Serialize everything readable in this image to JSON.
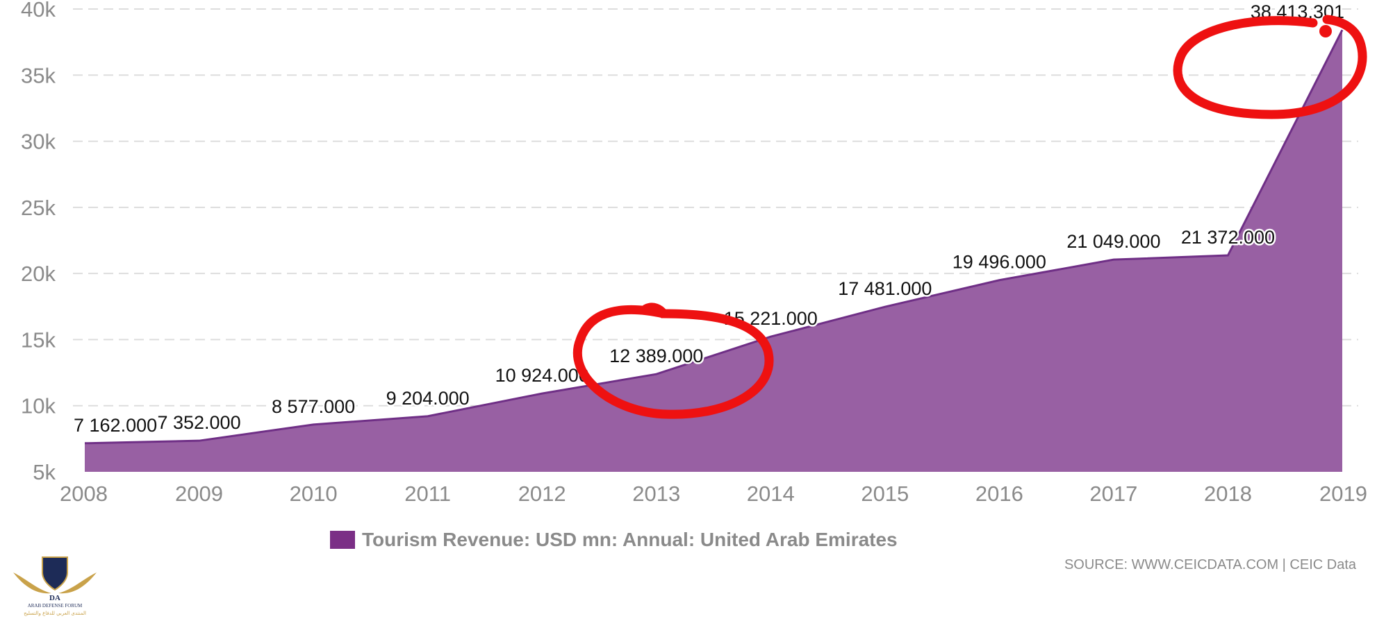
{
  "chart_data": {
    "type": "area",
    "x": [
      "2008",
      "2009",
      "2010",
      "2011",
      "2012",
      "2013",
      "2014",
      "2015",
      "2016",
      "2017",
      "2018",
      "2019"
    ],
    "series": [
      {
        "name": "Tourism Revenue: USD mn: Annual: United Arab Emirates",
        "values": [
          7162.0,
          7352.0,
          8577.0,
          9204.0,
          10924.0,
          12389.0,
          15221.0,
          17481.0,
          19496.0,
          21049.0,
          21372.0,
          38413.301
        ]
      }
    ],
    "data_labels": [
      "7 162.000",
      "7 352.000",
      "8 577.000",
      "9 204.000",
      "10 924.000",
      "12 389.000",
      "15 221.000",
      "17 481.000",
      "19 496.000",
      "21 049.000",
      "21 372.000",
      "38 413.301"
    ],
    "ylim": [
      5000,
      40000
    ],
    "y_ticks": [
      5000,
      10000,
      15000,
      20000,
      25000,
      30000,
      35000,
      40000
    ],
    "y_tick_labels": [
      "5k",
      "10k",
      "15k",
      "20k",
      "25k",
      "30k",
      "35k",
      "40k"
    ],
    "grid": true,
    "legend_position": "bottom-center",
    "annotations": [
      "red hand-drawn circle around 2013 value",
      "red hand-drawn circle around 2019 value"
    ]
  },
  "source_text": "SOURCE: WWW.CEICDATA.COM | CEIC Data",
  "logo": {
    "text": "ARAB DEFENSE FORUM",
    "arabic_text": "المنتدى العربي للدفاع والتسليح"
  },
  "colors": {
    "area": "#9860a3",
    "line": "#6f2f86",
    "swatch": "#7b2f86",
    "annotation": "#ee1111",
    "grid": "#dddddd"
  }
}
